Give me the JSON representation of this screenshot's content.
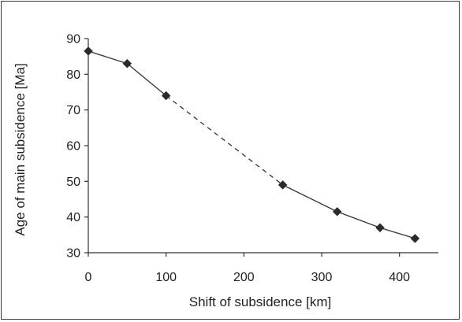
{
  "chart_data": {
    "type": "line",
    "title": "",
    "xlabel": "Shift of subsidence [km]",
    "ylabel": "Age of main subsidence [Ma]",
    "xlim": [
      0,
      450
    ],
    "ylim": [
      30,
      90
    ],
    "xticks": [
      0,
      100,
      200,
      300,
      400
    ],
    "yticks": [
      30,
      40,
      50,
      60,
      70,
      80,
      90
    ],
    "grid": false,
    "legend": "none",
    "series": [
      {
        "x": [
          0,
          50,
          100,
          250,
          320,
          375,
          420
        ],
        "y": [
          86.5,
          83,
          74,
          49,
          41.5,
          37,
          34
        ],
        "color": "#333333",
        "marker": "diamond",
        "dashed_segments": [
          [
            2,
            3
          ]
        ]
      }
    ]
  }
}
